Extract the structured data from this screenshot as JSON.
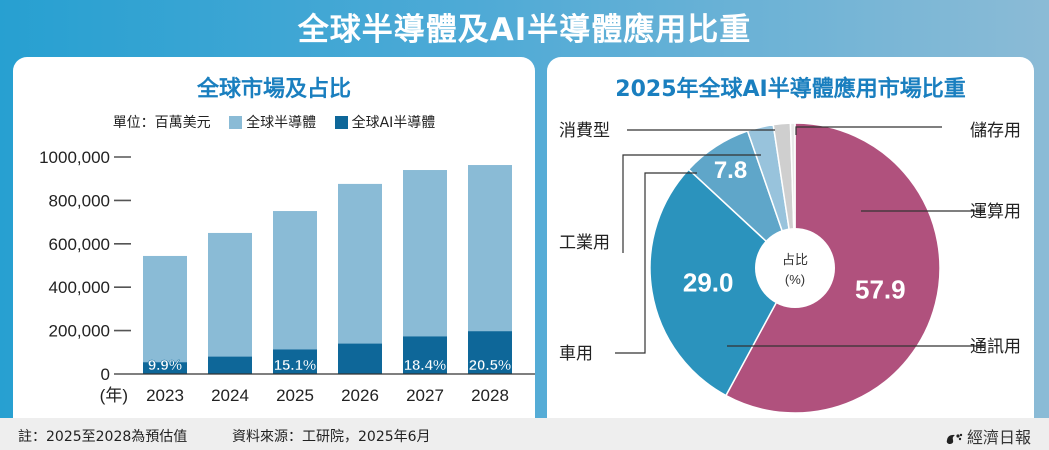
{
  "header": {
    "title": "全球半導體及AI半導體應用比重"
  },
  "left_panel": {
    "title": "全球市場及占比",
    "unit": "單位：百萬美元",
    "legend": [
      {
        "label": "全球半導體",
        "color": "#8abbd6"
      },
      {
        "label": "全球AI半導體",
        "color": "#0e6799"
      }
    ],
    "year_axis_label": "(年)"
  },
  "right_panel": {
    "title": "2025年全球AI半導體應用市場比重",
    "center_label_line1": "占比",
    "center_label_line2": "(%)"
  },
  "footer": {
    "note": "註：2025至2028為預估值",
    "source": "資料來源：工研院，2025年6月",
    "brand": "經濟日報"
  },
  "chart_data": [
    {
      "type": "bar",
      "title": "全球市場及占比",
      "ylabel": "單位：百萬美元",
      "xlabel": "(年)",
      "categories": [
        "2023",
        "2024",
        "2025",
        "2026",
        "2027",
        "2028"
      ],
      "ylim": [
        0,
        1000000
      ],
      "yticks": [
        0,
        200000,
        400000,
        600000,
        800000,
        1000000
      ],
      "ytick_labels": [
        "0",
        "200,000",
        "400,000",
        "600,000",
        "800,000",
        "1000,000"
      ],
      "series": [
        {
          "name": "全球半導體",
          "color": "#8abbd6",
          "values": [
            544000,
            650000,
            751000,
            876000,
            940000,
            963000
          ]
        },
        {
          "name": "全球AI半導體",
          "color": "#0e6799",
          "values": [
            54000,
            80000,
            113000,
            140000,
            173000,
            197000
          ]
        }
      ],
      "data_labels": [
        "9.9%",
        "",
        "15.1%",
        "",
        "18.4%",
        "20.5%"
      ]
    },
    {
      "type": "pie",
      "title": "2025年全球AI半導體應用市場比重",
      "slices": [
        {
          "label": "運算用",
          "value": 57.9,
          "display": "57.9",
          "color": "#b0517d"
        },
        {
          "label": "通訊用",
          "value": 29.0,
          "display": "29.0",
          "color": "#2b93bd"
        },
        {
          "label": "車用",
          "value": 7.8,
          "display": "7.8",
          "color": "#5fa6c9"
        },
        {
          "label": "工業用",
          "value": 2.9,
          "display": "",
          "color": "#98c3dc"
        },
        {
          "label": "消費型",
          "value": 1.9,
          "display": "",
          "color": "#cfcfcf"
        },
        {
          "label": "儲存用",
          "value": 0.5,
          "display": "",
          "color": "#e8e8e8"
        }
      ]
    }
  ]
}
